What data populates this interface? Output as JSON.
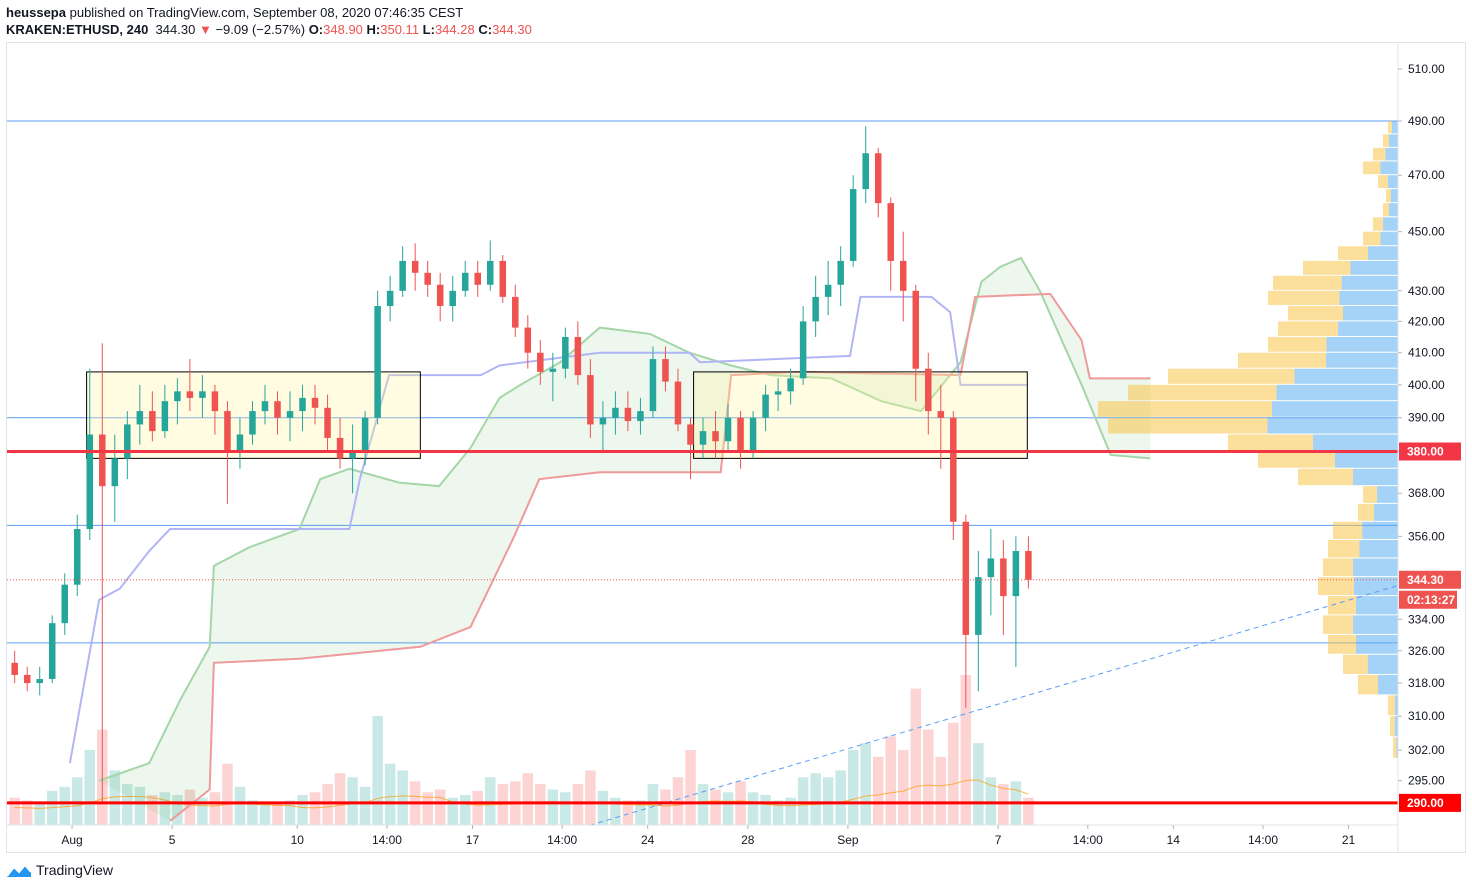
{
  "header": {
    "author": "heussepa",
    "published_text": "published on TradingView.com, September 08, 2020 07:46:35 CEST",
    "symbol": "KRAKEN:ETHUSD, 240",
    "last": "344.30",
    "change": "−9.09 (−2.57%)",
    "o_label": "O:",
    "o": "348.90",
    "h_label": "H:",
    "h": "350.11",
    "l_label": "L:",
    "l": "344.28",
    "c_label": "C:",
    "c": "344.30"
  },
  "footer": {
    "brand": "TradingView"
  },
  "colors": {
    "up": "#26a69a",
    "down": "#ef5350",
    "span_a": "#a5d6a7",
    "span_b": "#ef9a9a",
    "kijun": "#b2b5f5",
    "hline": "#5b9cf6",
    "level": "#f23645",
    "profile_up": "#5aaef0",
    "profile_down": "#f7c548"
  },
  "chart_data": {
    "type": "candlestick",
    "y_scale": "log",
    "ylim": [
      280,
      520
    ],
    "price_ticks": [
      "510.00",
      "490.00",
      "470.00",
      "450.00",
      "430.00",
      "420.00",
      "410.00",
      "400.00",
      "390.00",
      "368.00",
      "356.00",
      "334.00",
      "326.00",
      "318.00",
      "310.00",
      "302.00",
      "295.00"
    ],
    "time_ticks": [
      {
        "t": "2020-08-01T00:00",
        "label": "Aug"
      },
      {
        "t": "2020-08-05T00:00",
        "label": "5"
      },
      {
        "t": "2020-08-10T00:00",
        "label": "10"
      },
      {
        "t": "2020-08-13T14:00",
        "label": "14:00"
      },
      {
        "t": "2020-08-17T00:00",
        "label": "17"
      },
      {
        "t": "2020-08-20T14:00",
        "label": "14:00"
      },
      {
        "t": "2020-08-24T00:00",
        "label": "24"
      },
      {
        "t": "2020-08-28T00:00",
        "label": "28"
      },
      {
        "t": "2020-09-01T00:00",
        "label": "Sep"
      },
      {
        "t": "2020-09-07T00:00",
        "label": "7"
      },
      {
        "t": "2020-09-10T14:00",
        "label": "14:00"
      },
      {
        "t": "2020-09-14T00:00",
        "label": "14"
      },
      {
        "t": "2020-09-17T14:00",
        "label": "14:00"
      },
      {
        "t": "2020-09-21T00:00",
        "label": "21"
      }
    ],
    "candles_columns": [
      "time",
      "open",
      "high",
      "low",
      "close",
      "volume"
    ],
    "candles": [
      [
        "2020-07-29T12:00",
        323,
        326,
        318,
        320,
        20
      ],
      [
        "2020-07-30T00:00",
        320,
        322,
        316,
        318,
        18
      ],
      [
        "2020-07-30T12:00",
        318,
        322,
        315,
        319,
        16
      ],
      [
        "2020-07-31T00:00",
        319,
        335,
        318,
        333,
        25
      ],
      [
        "2020-07-31T12:00",
        333,
        346,
        330,
        343,
        28
      ],
      [
        "2020-08-01T00:00",
        343,
        362,
        340,
        358,
        35
      ],
      [
        "2020-08-01T12:00",
        358,
        405,
        355,
        385,
        55
      ],
      [
        "2020-08-02T00:00",
        385,
        413,
        290,
        370,
        70
      ],
      [
        "2020-08-02T12:00",
        370,
        385,
        360,
        378,
        40
      ],
      [
        "2020-08-03T00:00",
        378,
        392,
        372,
        388,
        30
      ],
      [
        "2020-08-03T12:00",
        388,
        400,
        382,
        392,
        28
      ],
      [
        "2020-08-04T00:00",
        392,
        398,
        383,
        386,
        22
      ],
      [
        "2020-08-04T12:00",
        386,
        400,
        384,
        395,
        24
      ],
      [
        "2020-08-05T00:00",
        395,
        402,
        388,
        398,
        22
      ],
      [
        "2020-08-05T12:00",
        398,
        408,
        392,
        396,
        26
      ],
      [
        "2020-08-06T00:00",
        396,
        403,
        390,
        398,
        20
      ],
      [
        "2020-08-06T12:00",
        398,
        400,
        385,
        392,
        24
      ],
      [
        "2020-08-07T00:00",
        392,
        395,
        365,
        380,
        45
      ],
      [
        "2020-08-07T12:00",
        380,
        390,
        375,
        385,
        28
      ],
      [
        "2020-08-08T00:00",
        385,
        395,
        382,
        392,
        18
      ],
      [
        "2020-08-08T12:00",
        392,
        400,
        388,
        395,
        17
      ],
      [
        "2020-08-09T00:00",
        395,
        398,
        385,
        390,
        16
      ],
      [
        "2020-08-09T12:00",
        390,
        398,
        383,
        392,
        18
      ],
      [
        "2020-08-10T00:00",
        392,
        400,
        386,
        396,
        22
      ],
      [
        "2020-08-10T12:00",
        396,
        400,
        388,
        393,
        24
      ],
      [
        "2020-08-11T00:00",
        393,
        397,
        380,
        384,
        30
      ],
      [
        "2020-08-11T12:00",
        384,
        390,
        375,
        378,
        38
      ],
      [
        "2020-08-12T00:00",
        378,
        388,
        368,
        380,
        35
      ],
      [
        "2020-08-12T12:00",
        380,
        392,
        376,
        390,
        28
      ],
      [
        "2020-08-13T00:00",
        390,
        430,
        388,
        425,
        80
      ],
      [
        "2020-08-13T12:00",
        425,
        435,
        420,
        430,
        45
      ],
      [
        "2020-08-14T00:00",
        430,
        445,
        428,
        440,
        40
      ],
      [
        "2020-08-14T12:00",
        440,
        446,
        430,
        436,
        32
      ],
      [
        "2020-08-15T00:00",
        436,
        440,
        428,
        432,
        24
      ],
      [
        "2020-08-15T12:00",
        432,
        436,
        420,
        425,
        26
      ],
      [
        "2020-08-16T00:00",
        425,
        435,
        420,
        430,
        20
      ],
      [
        "2020-08-16T12:00",
        430,
        440,
        428,
        436,
        22
      ],
      [
        "2020-08-17T00:00",
        436,
        440,
        428,
        432,
        25
      ],
      [
        "2020-08-17T12:00",
        432,
        447,
        430,
        440,
        35
      ],
      [
        "2020-08-18T00:00",
        440,
        442,
        426,
        428,
        30
      ],
      [
        "2020-08-18T12:00",
        428,
        432,
        415,
        418,
        32
      ],
      [
        "2020-08-19T00:00",
        418,
        422,
        405,
        410,
        38
      ],
      [
        "2020-08-19T12:00",
        410,
        414,
        400,
        404,
        30
      ],
      [
        "2020-08-20T00:00",
        404,
        410,
        395,
        405,
        26
      ],
      [
        "2020-08-20T12:00",
        405,
        418,
        402,
        415,
        24
      ],
      [
        "2020-08-21T00:00",
        415,
        420,
        400,
        403,
        30
      ],
      [
        "2020-08-21T12:00",
        403,
        408,
        384,
        388,
        40
      ],
      [
        "2020-08-22T00:00",
        388,
        395,
        380,
        390,
        25
      ],
      [
        "2020-08-22T12:00",
        390,
        398,
        385,
        393,
        20
      ],
      [
        "2020-08-23T00:00",
        393,
        398,
        386,
        389,
        18
      ],
      [
        "2020-08-23T12:00",
        389,
        396,
        385,
        392,
        18
      ],
      [
        "2020-08-24T00:00",
        392,
        412,
        390,
        408,
        30
      ],
      [
        "2020-08-24T12:00",
        408,
        412,
        398,
        401,
        26
      ],
      [
        "2020-08-25T00:00",
        401,
        405,
        386,
        388,
        35
      ],
      [
        "2020-08-25T12:00",
        388,
        390,
        372,
        382,
        55
      ],
      [
        "2020-08-26T00:00",
        382,
        390,
        378,
        386,
        30
      ],
      [
        "2020-08-26T12:00",
        386,
        392,
        378,
        383,
        26
      ],
      [
        "2020-08-27T00:00",
        383,
        394,
        380,
        390,
        24
      ],
      [
        "2020-08-27T12:00",
        390,
        392,
        375,
        380,
        32
      ],
      [
        "2020-08-28T00:00",
        380,
        392,
        378,
        390,
        24
      ],
      [
        "2020-08-28T12:00",
        390,
        400,
        386,
        397,
        22
      ],
      [
        "2020-08-29T00:00",
        397,
        402,
        392,
        398,
        18
      ],
      [
        "2020-08-29T12:00",
        398,
        405,
        394,
        402,
        20
      ],
      [
        "2020-08-30T00:00",
        402,
        425,
        400,
        420,
        35
      ],
      [
        "2020-08-30T12:00",
        420,
        435,
        415,
        428,
        38
      ],
      [
        "2020-08-31T00:00",
        428,
        440,
        422,
        432,
        35
      ],
      [
        "2020-08-31T12:00",
        432,
        445,
        425,
        440,
        40
      ],
      [
        "2020-09-01T00:00",
        440,
        470,
        438,
        465,
        55
      ],
      [
        "2020-09-01T12:00",
        465,
        488,
        460,
        478,
        60
      ],
      [
        "2020-09-02T00:00",
        478,
        480,
        455,
        460,
        50
      ],
      [
        "2020-09-02T12:00",
        460,
        462,
        430,
        440,
        65
      ],
      [
        "2020-09-03T00:00",
        440,
        450,
        420,
        430,
        55
      ],
      [
        "2020-09-03T12:00",
        430,
        432,
        395,
        405,
        100
      ],
      [
        "2020-09-04T00:00",
        405,
        410,
        385,
        392,
        70
      ],
      [
        "2020-09-04T12:00",
        392,
        400,
        375,
        390,
        50
      ],
      [
        "2020-09-05T00:00",
        390,
        392,
        355,
        360,
        75
      ],
      [
        "2020-09-05T12:00",
        360,
        362,
        312,
        330,
        110
      ],
      [
        "2020-09-06T00:00",
        330,
        352,
        316,
        345,
        60
      ],
      [
        "2020-09-06T12:00",
        345,
        358,
        335,
        350,
        35
      ],
      [
        "2020-09-07T00:00",
        350,
        355,
        330,
        340,
        30
      ],
      [
        "2020-09-07T12:00",
        340,
        356,
        322,
        352,
        32
      ],
      [
        "2020-09-08T00:00",
        352,
        356,
        342,
        344.3,
        20
      ]
    ],
    "span_a": [
      [
        "2020-08-02T02:00",
        295
      ],
      [
        "2020-08-04T02:00",
        299
      ],
      [
        "2020-08-05T08:00",
        314
      ],
      [
        "2020-08-06T12:00",
        327
      ],
      [
        "2020-08-06T16:00",
        348
      ],
      [
        "2020-08-08T02:00",
        353
      ],
      [
        "2020-08-10T02:00",
        358
      ],
      [
        "2020-08-10T22:00",
        372
      ],
      [
        "2020-08-12T02:00",
        375
      ],
      [
        "2020-08-14T02:00",
        371
      ],
      [
        "2020-08-15T16:00",
        370
      ],
      [
        "2020-08-16T22:00",
        381
      ],
      [
        "2020-08-18T02:00",
        396
      ],
      [
        "2020-08-18T22:00",
        400
      ],
      [
        "2020-08-20T12:00",
        407
      ],
      [
        "2020-08-22T02:00",
        418
      ],
      [
        "2020-08-24T02:00",
        416
      ],
      [
        "2020-08-25T16:00",
        410
      ],
      [
        "2020-08-27T08:00",
        406
      ],
      [
        "2020-08-28T22:00",
        403
      ],
      [
        "2020-08-31T08:00",
        402
      ],
      [
        "2020-09-02T08:00",
        395
      ],
      [
        "2020-09-03T22:00",
        392
      ],
      [
        "2020-09-05T12:00",
        407
      ],
      [
        "2020-09-06T08:00",
        433
      ],
      [
        "2020-09-07T02:00",
        438
      ],
      [
        "2020-09-07T22:00",
        441
      ],
      [
        "2020-09-08T16:00",
        430
      ],
      [
        "2020-09-10T08:00",
        400
      ],
      [
        "2020-09-11T12:00",
        379
      ],
      [
        "2020-09-13T02:00",
        378
      ]
    ],
    "span_b": [
      [
        "2020-08-04T22:00",
        286
      ],
      [
        "2020-08-06T12:00",
        293
      ],
      [
        "2020-08-06T16:00",
        323
      ],
      [
        "2020-08-10T02:00",
        324
      ],
      [
        "2020-08-14T22:00",
        327
      ],
      [
        "2020-08-16T22:00",
        332
      ],
      [
        "2020-08-17T16:00",
        342
      ],
      [
        "2020-08-18T16:00",
        356
      ],
      [
        "2020-08-19T16:00",
        372
      ],
      [
        "2020-08-22T02:00",
        374
      ],
      [
        "2020-08-26T22:00",
        374
      ],
      [
        "2020-08-27T08:00",
        403
      ],
      [
        "2020-08-30T02:00",
        404
      ],
      [
        "2020-09-05T12:00",
        403
      ],
      [
        "2020-09-06T02:00",
        428
      ],
      [
        "2020-09-09T02:00",
        429
      ],
      [
        "2020-09-10T08:00",
        414
      ],
      [
        "2020-09-10T16:00",
        402
      ],
      [
        "2020-09-13T02:00",
        402
      ]
    ],
    "kijun": [
      [
        "2020-07-31T22:00",
        299
      ],
      [
        "2020-08-02T02:00",
        339
      ],
      [
        "2020-08-02T22:00",
        342
      ],
      [
        "2020-08-04T02:00",
        352
      ],
      [
        "2020-08-04T22:00",
        358
      ],
      [
        "2020-08-12T02:00",
        358
      ],
      [
        "2020-08-12T12:00",
        372
      ],
      [
        "2020-08-13T16:00",
        403
      ],
      [
        "2020-08-17T08:00",
        403
      ],
      [
        "2020-08-18T02:00",
        406
      ],
      [
        "2020-08-22T02:00",
        410
      ],
      [
        "2020-08-25T16:00",
        410
      ],
      [
        "2020-08-26T02:00",
        407
      ],
      [
        "2020-09-01T02:00",
        409
      ],
      [
        "2020-09-01T12:00",
        428
      ],
      [
        "2020-09-04T08:00",
        428
      ],
      [
        "2020-09-05T02:00",
        423
      ],
      [
        "2020-09-05T12:00",
        400
      ],
      [
        "2020-09-08T04:00",
        400
      ]
    ],
    "volume_profile": [
      [
        300,
        5,
        0.3
      ],
      [
        305,
        8,
        0.4
      ],
      [
        310,
        10,
        0.3
      ],
      [
        315,
        40,
        0.5
      ],
      [
        320,
        55,
        0.55
      ],
      [
        325,
        70,
        0.6
      ],
      [
        330,
        75,
        0.6
      ],
      [
        335,
        70,
        0.6
      ],
      [
        340,
        80,
        0.55
      ],
      [
        345,
        75,
        0.6
      ],
      [
        350,
        70,
        0.55
      ],
      [
        355,
        65,
        0.55
      ],
      [
        360,
        40,
        0.6
      ],
      [
        365,
        35,
        0.6
      ],
      [
        370,
        100,
        0.45
      ],
      [
        375,
        140,
        0.45
      ],
      [
        380,
        170,
        0.5
      ],
      [
        385,
        290,
        0.45
      ],
      [
        390,
        300,
        0.42
      ],
      [
        395,
        270,
        0.45
      ],
      [
        400,
        230,
        0.45
      ],
      [
        405,
        160,
        0.45
      ],
      [
        410,
        130,
        0.55
      ],
      [
        415,
        120,
        0.5
      ],
      [
        420,
        110,
        0.5
      ],
      [
        425,
        130,
        0.45
      ],
      [
        430,
        125,
        0.45
      ],
      [
        435,
        95,
        0.5
      ],
      [
        440,
        60,
        0.5
      ],
      [
        445,
        35,
        0.5
      ],
      [
        450,
        25,
        0.6
      ],
      [
        455,
        15,
        0.6
      ],
      [
        460,
        12,
        0.6
      ],
      [
        465,
        20,
        0.5
      ],
      [
        470,
        35,
        0.5
      ],
      [
        475,
        25,
        0.5
      ],
      [
        480,
        15,
        0.6
      ],
      [
        485,
        10,
        0.6
      ]
    ],
    "horizontal_lines": [
      490,
      390,
      359,
      328
    ],
    "levels": [
      {
        "price": 380,
        "label": "380.00"
      },
      {
        "price": 290,
        "label": "290.00"
      }
    ],
    "boxes": [
      {
        "from": "2020-08-01T14:00",
        "to": "2020-08-14T22:00",
        "top": 404,
        "bottom": 378
      },
      {
        "from": "2020-08-25T20:00",
        "to": "2020-09-08T04:00",
        "top": 404,
        "bottom": 378
      }
    ],
    "trend_line": [
      [
        "2020-08-21T16:00",
        285
      ],
      [
        "2020-09-23T02:00",
        343
      ]
    ],
    "last_price": {
      "price": 344.3,
      "label": "344.30",
      "countdown": "02:13:27"
    }
  }
}
